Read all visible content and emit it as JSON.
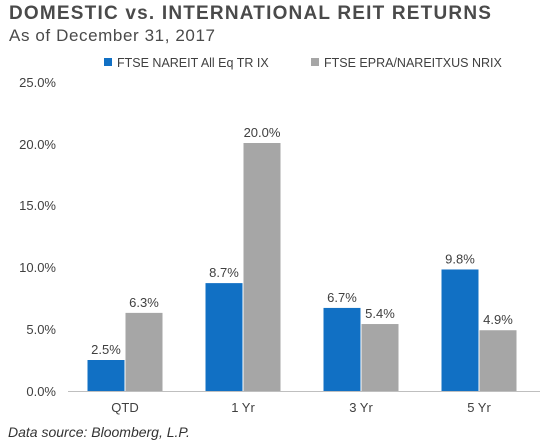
{
  "header": {
    "title": "DOMESTIC vs. INTERNATIONAL REIT RETURNS",
    "subtitle": "As of December 31, 2017"
  },
  "footer": {
    "source": "Data source: Bloomberg, L.P."
  },
  "colors": {
    "series_1": "#1170c4",
    "series_2": "#a6a6a6",
    "axis": "#bfbfbf",
    "text": "#404040"
  },
  "chart_data": {
    "type": "bar",
    "title": "DOMESTIC vs. INTERNATIONAL REIT RETURNS",
    "subtitle": "As of December 31, 2017",
    "categories": [
      "QTD",
      "1 Yr",
      "3 Yr",
      "5 Yr"
    ],
    "series": [
      {
        "name": "FTSE NAREIT All Eq TR IX",
        "values": [
          2.5,
          8.7,
          6.7,
          9.8
        ],
        "labels": [
          "2.5%",
          "8.7%",
          "6.7%",
          "9.8%"
        ],
        "color": "#1170c4"
      },
      {
        "name": "FTSE EPRA/NAREITXUS NRIX",
        "values": [
          6.3,
          20.0,
          5.4,
          4.9
        ],
        "labels": [
          "6.3%",
          "20.0%",
          "5.4%",
          "4.9%"
        ],
        "color": "#a6a6a6"
      }
    ],
    "y_ticks": [
      "0.0%",
      "5.0%",
      "10.0%",
      "15.0%",
      "20.0%",
      "25.0%"
    ],
    "y_tick_values": [
      0,
      5,
      10,
      15,
      20,
      25
    ],
    "ylim": [
      0,
      25
    ],
    "unit": "%",
    "grid": false,
    "legend_position": "top"
  }
}
